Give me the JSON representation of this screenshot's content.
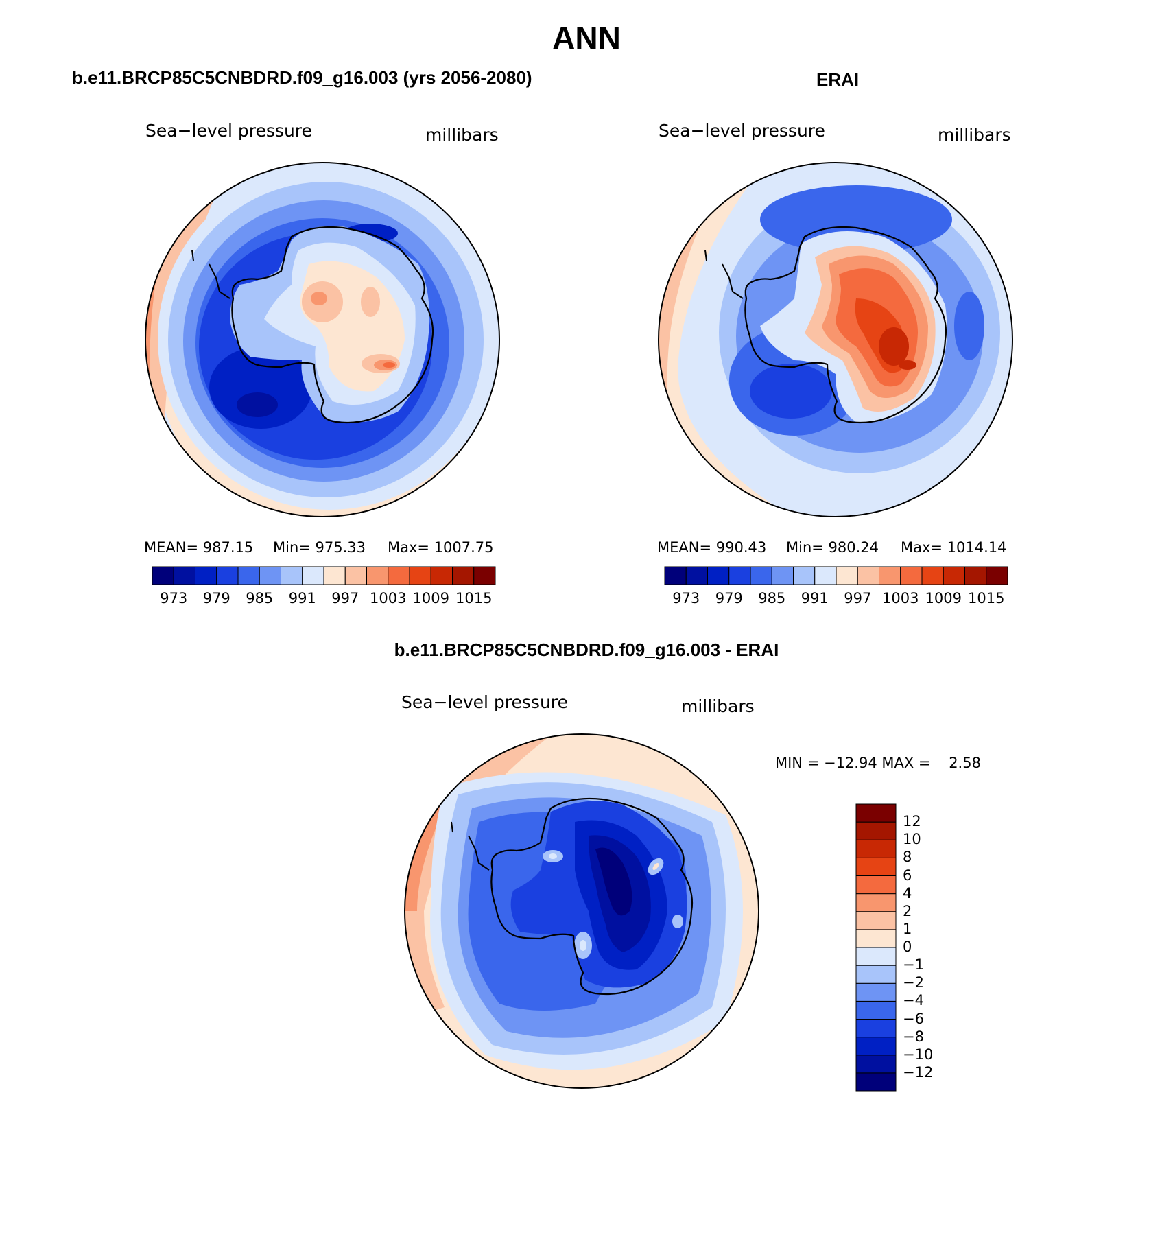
{
  "title": "ANN",
  "panels": [
    {
      "title": "b.e11.BRCP85C5CNBDRD.f09_g16.003 (yrs 2056-2080)",
      "left_label": "Sea−level pressure",
      "right_label": "millibars",
      "mean": "MEAN= 987.15",
      "min": "Min= 975.33",
      "max": "Max= 1007.75"
    },
    {
      "title": "ERAI",
      "left_label": "Sea−level pressure",
      "right_label": "millibars",
      "mean": "MEAN= 990.43",
      "min": "Min= 980.24",
      "max": "Max= 1014.14"
    },
    {
      "title": "b.e11.BRCP85C5CNBDRD.f09_g16.003 - ERAI",
      "left_label": "Sea−level pressure",
      "right_label": "millibars",
      "minmax": "MIN = −12.94 MAX =    2.58"
    }
  ],
  "colorbar_abs": {
    "colors": [
      "#00007a",
      "#0010a0",
      "#0020c4",
      "#1a40e0",
      "#3a66ec",
      "#6e94f4",
      "#a8c4fa",
      "#dbe8fc",
      "#fde6d2",
      "#fbc2a4",
      "#f8966e",
      "#f46a3e",
      "#e64414",
      "#c82804",
      "#a41600",
      "#7a0000"
    ],
    "tick_labels": [
      "973",
      "979",
      "985",
      "991",
      "997",
      "1003",
      "1009",
      "1015"
    ]
  },
  "colorbar_diff": {
    "colors": [
      "#00007a",
      "#0010a0",
      "#0020c4",
      "#1a40e0",
      "#3a66ec",
      "#6e94f4",
      "#a8c4fa",
      "#dbe8fc",
      "#fde6d2",
      "#fbc2a4",
      "#f8966e",
      "#f46a3e",
      "#e64414",
      "#c82804",
      "#a41600",
      "#7a0000"
    ],
    "tick_labels": [
      "12",
      "10",
      "8",
      "6",
      "4",
      "2",
      "1",
      "0",
      "−1",
      "−2",
      "−4",
      "−6",
      "−8",
      "−10",
      "−12"
    ]
  },
  "map_colors": {
    "ocean_deep": "#1a40e0",
    "ocean_mid": "#3a66ec",
    "ocean_light": "#6e94f4",
    "ring_pale": "#a8c4fa",
    "ring_faint": "#dbe8fc",
    "warm_faint": "#fde6d2",
    "warm_light": "#fbc2a4",
    "warm_mid": "#f8966e",
    "warm_strong": "#f46a3e",
    "warm_deep": "#e64414",
    "warm_max": "#c82804",
    "low_core": "#0020c4",
    "low_max": "#0010a0"
  }
}
